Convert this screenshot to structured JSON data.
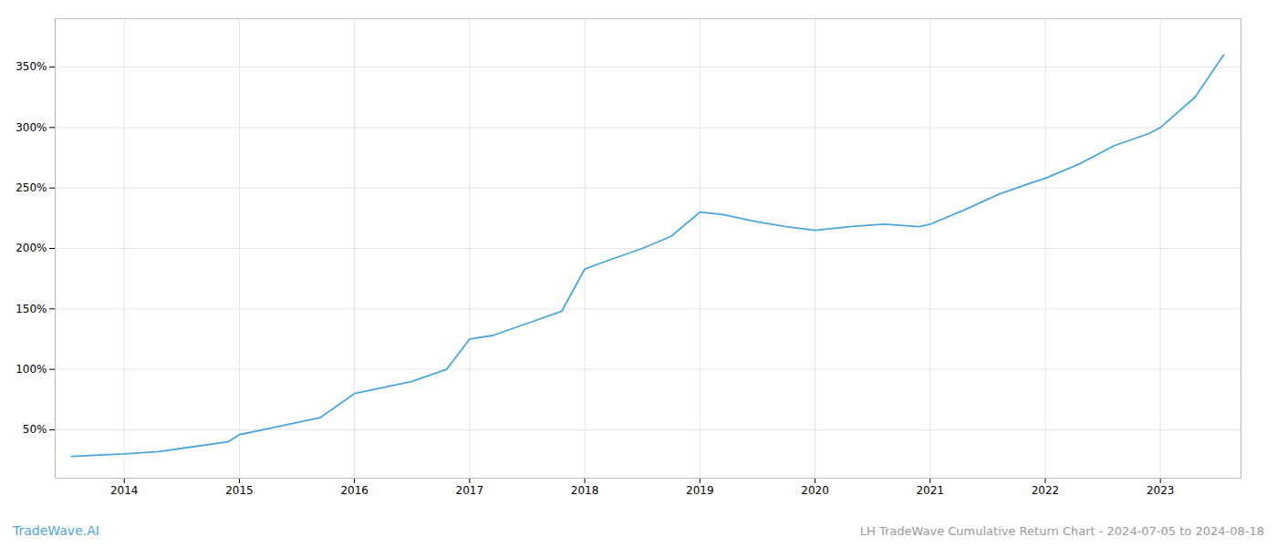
{
  "chart_data": {
    "type": "line",
    "title": "LH TradeWave Cumulative Return Chart - 2024-07-05 to 2024-08-18",
    "annotations": [
      "TradeWave.AI"
    ],
    "color": "#4da6d9",
    "x": [
      2013.54,
      2014.0,
      2014.3,
      2014.6,
      2014.9,
      2015.0,
      2015.3,
      2015.7,
      2016.0,
      2016.2,
      2016.5,
      2016.8,
      2017.0,
      2017.2,
      2017.5,
      2017.8,
      2018.0,
      2018.2,
      2018.5,
      2018.75,
      2019.0,
      2019.2,
      2019.5,
      2019.75,
      2020.0,
      2020.3,
      2020.6,
      2020.9,
      2021.0,
      2021.3,
      2021.6,
      2021.9,
      2022.0,
      2022.3,
      2022.6,
      2022.9,
      2023.0,
      2023.3,
      2023.55
    ],
    "values": [
      28,
      30,
      32,
      36,
      40,
      46,
      52,
      60,
      80,
      84,
      90,
      100,
      125,
      128,
      138,
      148,
      183,
      190,
      200,
      210,
      230,
      228,
      222,
      218,
      215,
      218,
      220,
      218,
      220,
      232,
      245,
      255,
      258,
      270,
      285,
      295,
      300,
      325,
      360
    ],
    "xlim": [
      2013.4,
      2023.7
    ],
    "xticks": [
      2014,
      2015,
      2016,
      2017,
      2018,
      2019,
      2020,
      2021,
      2022,
      2023
    ],
    "ylim": [
      10,
      390
    ],
    "yticks": [
      {
        "value": 50,
        "label": "50%"
      },
      {
        "value": 100,
        "label": "100%"
      },
      {
        "value": 150,
        "label": "150%"
      },
      {
        "value": 200,
        "label": "200%"
      },
      {
        "value": 250,
        "label": "250%"
      },
      {
        "value": 300,
        "label": "300%"
      },
      {
        "value": 350,
        "label": "350%"
      }
    ],
    "grid": true
  }
}
